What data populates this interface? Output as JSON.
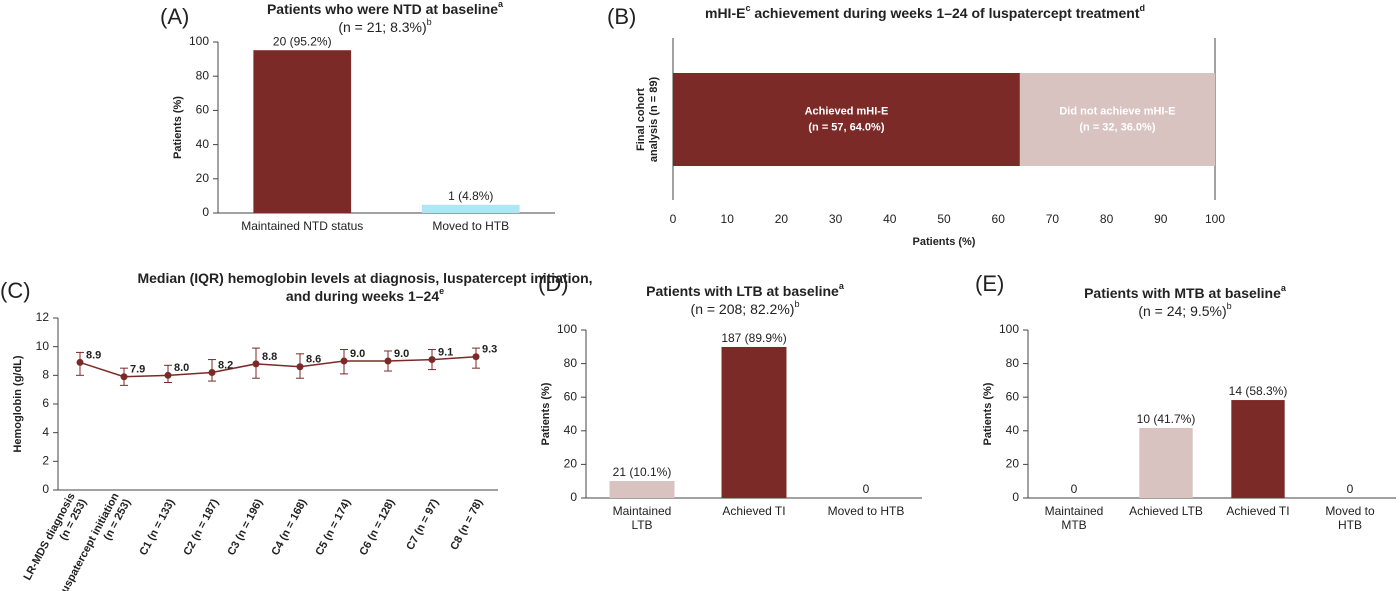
{
  "chart_data": [
    {
      "type": "bar",
      "panel": "(A)",
      "title": [
        [
          {
            "text": "Patients who were NTD at baseline"
          },
          {
            "sup": "a"
          }
        ]
      ],
      "subtitle": [
        {
          "text": "(n = 21; 8.3%)"
        },
        {
          "sup": "b"
        }
      ],
      "ylabel": "Patients (%)",
      "categories": [
        [
          "Maintained NTD status"
        ],
        [
          "Moved to HTB"
        ]
      ],
      "values": [
        95.2,
        4.8
      ],
      "value_labels": [
        "20 (95.2%)",
        "1 (4.8%)"
      ],
      "colors": [
        "#7b2a27",
        "#aee6f5"
      ],
      "ylim": [
        0,
        100
      ],
      "yticks": [
        0,
        20,
        40,
        60,
        80,
        100
      ]
    },
    {
      "type": "stackedbar",
      "panel": "(B)",
      "title": [
        [
          {
            "text": "mHI-E"
          },
          {
            "sup": "c"
          },
          {
            "text": " achievement during weeks 1–24 of luspatercept treatment"
          },
          {
            "sup": "d"
          }
        ]
      ],
      "categories": [
        [
          "Final cohort",
          "analysis (n = 89)"
        ]
      ],
      "series": [
        {
          "name": "Achieved mHI-E",
          "color": "#7b2a27",
          "values": [
            64.0
          ],
          "value_labels": [
            "(n = 57, 64.0%)"
          ]
        },
        {
          "name": "Did not achieve mHI-E",
          "color": "#d9c3c1",
          "values": [
            36.0
          ],
          "value_labels": [
            "(n = 32, 36.0%)"
          ]
        }
      ],
      "xlabel": "Patients (%)",
      "xlim": [
        0,
        100
      ],
      "xticks": [
        0,
        10,
        20,
        30,
        40,
        50,
        60,
        70,
        80,
        90,
        100
      ]
    },
    {
      "type": "line",
      "panel": "(C)",
      "title": [
        [
          {
            "text": "Median (IQR) hemoglobin levels at diagnosis, luspatercept initiation,"
          }
        ],
        [
          {
            "text": "and during weeks 1–24"
          },
          {
            "sup": "e"
          }
        ]
      ],
      "ylabel": "Hemoglobin (g/dL)",
      "categories": [
        [
          "LR-MDS diagnosis",
          "(n = 253)"
        ],
        [
          "Luspatercept initiation",
          "(n = 253)"
        ],
        [
          "C1 (n = 133)"
        ],
        [
          "C2 (n = 187)"
        ],
        [
          "C3 (n = 196)"
        ],
        [
          "C4 (n = 168)"
        ],
        [
          "C5 (n = 174)"
        ],
        [
          "C6 (n = 128)"
        ],
        [
          "C7 (n = 97)"
        ],
        [
          "C8 (n = 78)"
        ]
      ],
      "values": [
        8.9,
        7.9,
        8.0,
        8.2,
        8.8,
        8.6,
        9.0,
        9.0,
        9.1,
        9.3
      ],
      "value_labels": [
        "8.9",
        "7.9",
        "8.0",
        "8.2",
        "8.8",
        "8.6",
        "9.0",
        "9.0",
        "9.1",
        "9.3"
      ],
      "lower": [
        8.0,
        7.3,
        7.5,
        7.6,
        7.8,
        7.8,
        8.1,
        8.3,
        8.4,
        8.5
      ],
      "upper": [
        9.6,
        8.5,
        8.7,
        9.1,
        9.9,
        9.5,
        9.8,
        9.7,
        9.8,
        9.9
      ],
      "color": "#7b2a27",
      "ylim": [
        0,
        12
      ],
      "yticks": [
        0,
        2,
        4,
        6,
        8,
        10,
        12
      ]
    },
    {
      "type": "bar",
      "panel": "(D)",
      "title": [
        [
          {
            "text": "Patients with LTB at baseline"
          },
          {
            "sup": "a"
          }
        ]
      ],
      "subtitle": [
        {
          "text": "(n = 208; 82.2%)"
        },
        {
          "sup": "b"
        }
      ],
      "ylabel": "Patients (%)",
      "categories": [
        [
          "Maintained",
          "LTB"
        ],
        [
          "Achieved TI"
        ],
        [
          "Moved to HTB"
        ]
      ],
      "values": [
        10.1,
        89.9,
        0
      ],
      "value_labels": [
        "21 (10.1%)",
        "187 (89.9%)",
        "0"
      ],
      "colors": [
        "#d9c3c1",
        "#7b2a27",
        "#7b2a27"
      ],
      "ylim": [
        0,
        100
      ],
      "yticks": [
        0,
        20,
        40,
        60,
        80,
        100
      ]
    },
    {
      "type": "bar",
      "panel": "(E)",
      "title": [
        [
          {
            "text": "Patients with MTB at baseline"
          },
          {
            "sup": "a"
          }
        ]
      ],
      "subtitle": [
        {
          "text": "(n = 24; 9.5%)"
        },
        {
          "sup": "b"
        }
      ],
      "ylabel": "Patients (%)",
      "categories": [
        [
          "Maintained",
          "MTB"
        ],
        [
          "Achieved LTB"
        ],
        [
          "Achieved TI"
        ],
        [
          "Moved to",
          "HTB"
        ]
      ],
      "values": [
        0,
        41.7,
        58.3,
        0
      ],
      "value_labels": [
        "0",
        "10 (41.7%)",
        "14 (58.3%)",
        "0"
      ],
      "colors": [
        "#7b2a27",
        "#d9c3c1",
        "#7b2a27",
        "#7b2a27"
      ],
      "ylim": [
        0,
        100
      ],
      "yticks": [
        0,
        20,
        40,
        60,
        80,
        100
      ]
    }
  ]
}
